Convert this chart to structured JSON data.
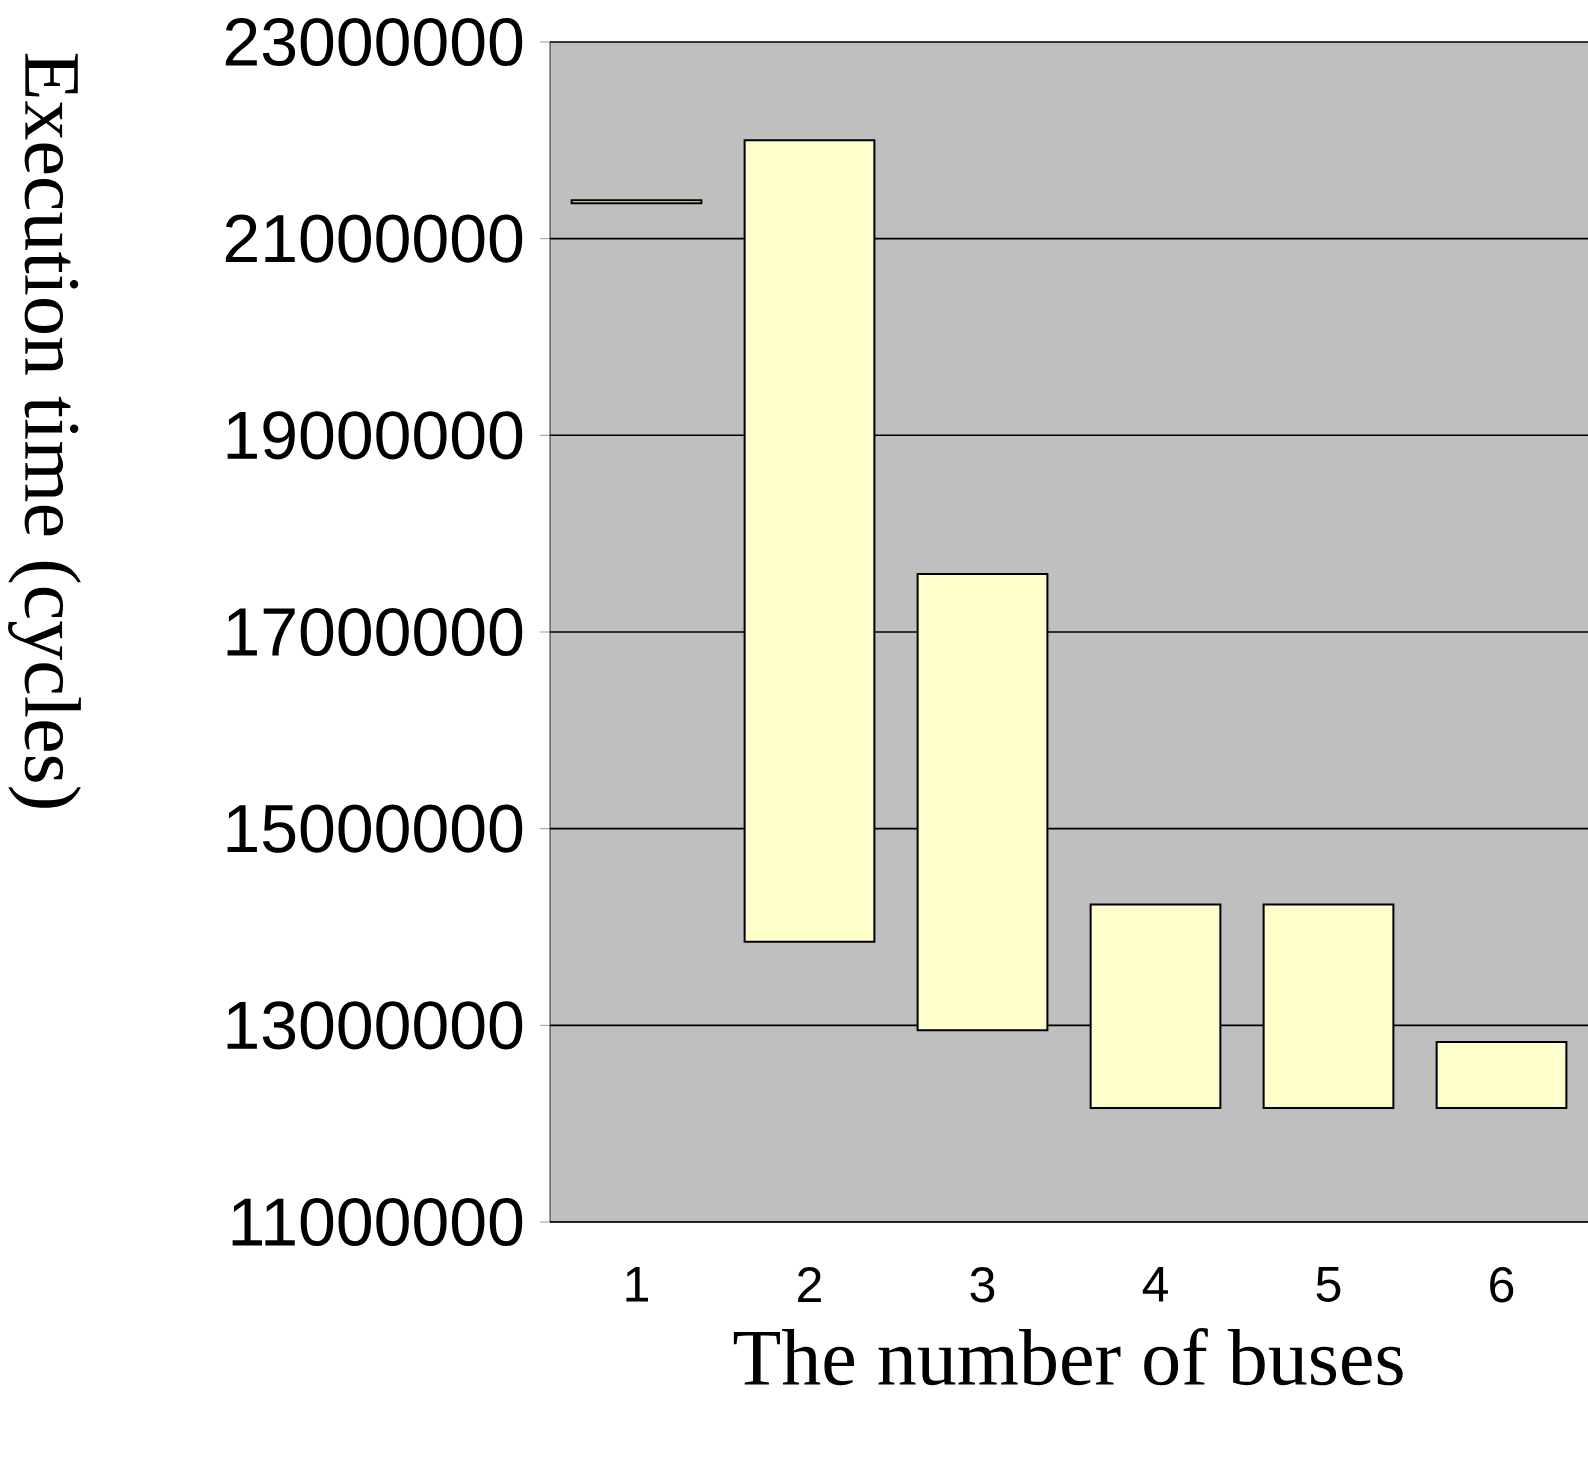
{
  "chart_data": {
    "type": "bar",
    "xlabel": "The number of buses",
    "ylabel": "Execution time (cycles)",
    "categories": [
      "1",
      "2",
      "3",
      "4",
      "5",
      "6"
    ],
    "base": [
      21360000,
      13850000,
      12950000,
      12160000,
      12160000,
      12160000
    ],
    "values": [
      30000,
      8150000,
      4640000,
      2070000,
      2070000,
      670000
    ],
    "color": "#ffffcc",
    "ylim": [
      11000000,
      23000000
    ],
    "yticks": [
      11000000,
      13000000,
      15000000,
      17000000,
      19000000,
      21000000,
      23000000
    ],
    "grid": "y"
  }
}
